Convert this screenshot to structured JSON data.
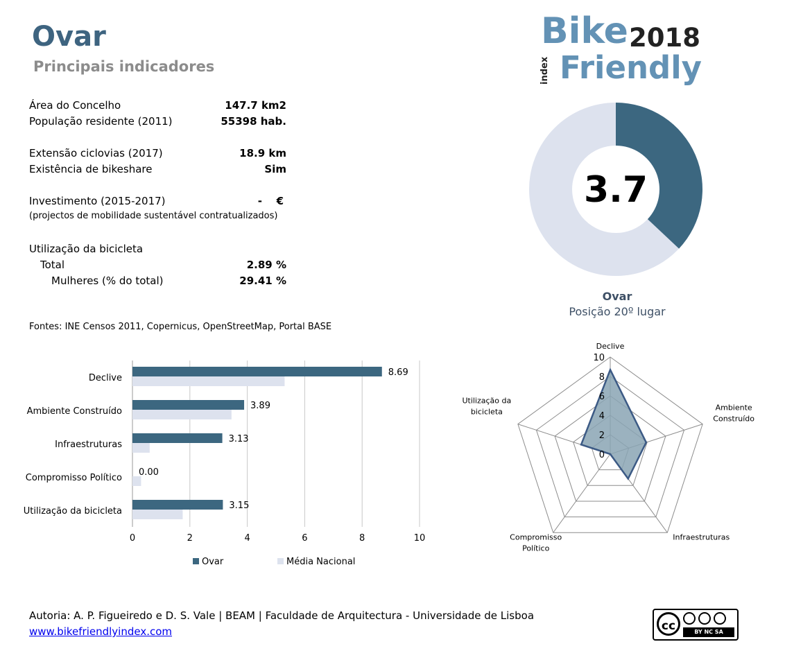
{
  "header": {
    "title": "Ovar",
    "subtitle": "Principais indicadores"
  },
  "logo": {
    "bike": "Bike",
    "year": "2018",
    "friendly": "Friendly",
    "index": "index"
  },
  "indicators": {
    "area_label": "Área do Concelho",
    "area_value": "147.7 km2",
    "pop_label": "População residente (2011)",
    "pop_value": "55398 hab.",
    "cycle_label": "Extensão ciclovias (2017)",
    "cycle_value": "18.9 km",
    "bikeshare_label": "Existência de bikeshare",
    "bikeshare_value": "Sim",
    "invest_label": "Investimento (2015-2017)",
    "invest_dash": "-",
    "invest_unit": "€",
    "invest_note": "(projectos de mobilidade sustentável contratualizados)",
    "usage_label": "Utilização da bicicleta",
    "total_label": "Total",
    "total_value": "2.89 %",
    "women_label": "Mulheres (% do total)",
    "women_value": "29.41 %"
  },
  "sources": "Fontes: INE Censos 2011, Copernicus, OpenStreetMap,  Portal BASE",
  "donut": {
    "score": "3.7",
    "value": 3.7,
    "max": 10,
    "city": "Ovar",
    "position": "Posição 20º lugar",
    "colors": {
      "filled": "#3c6780",
      "empty": "#dde2ee"
    }
  },
  "chart_data": [
    {
      "type": "bar",
      "orientation": "horizontal",
      "categories": [
        "Declive",
        "Ambiente Construído",
        "Infraestruturas",
        "Compromisso Político",
        "Utilização da bicicleta"
      ],
      "series": [
        {
          "name": "Ovar",
          "values": [
            8.69,
            3.89,
            3.13,
            0.0,
            3.15
          ],
          "color": "#3c6780"
        },
        {
          "name": "Média Nacional",
          "values": [
            5.3,
            3.45,
            0.6,
            0.3,
            1.75
          ],
          "color": "#dde2ee"
        }
      ],
      "data_labels": [
        "8.69",
        "3.89",
        "3.13",
        "0.00",
        "3.15"
      ],
      "xlim": [
        0,
        10
      ],
      "x_ticks": [
        "0",
        "2",
        "4",
        "6",
        "8",
        "10"
      ],
      "grid": true,
      "legend": "bottom"
    },
    {
      "type": "radar",
      "axes": [
        "Declive",
        "Ambiente Construído",
        "Infraestruturas",
        "Compromisso Político",
        "Utilização da bicicleta"
      ],
      "axis_labels": [
        [
          "Declive"
        ],
        [
          "Ambiente",
          "Construído"
        ],
        [
          "Infraestruturas"
        ],
        [
          "Compromisso",
          "Político"
        ],
        [
          "Utilização da",
          "bicicleta"
        ]
      ],
      "values": [
        8.69,
        3.89,
        3.13,
        0.0,
        3.15
      ],
      "rlim": [
        0,
        10
      ],
      "r_ticks": [
        "0",
        "2",
        "4",
        "6",
        "8",
        "10"
      ],
      "color": "#3c5a85",
      "fill": "#8aa4b4"
    }
  ],
  "footer": {
    "authors": "Autoria: A. P. Figueiredo e D. S. Vale | BEAM | Faculdade de Arquitectura - Universidade de Lisboa",
    "link": "www.bikefriendlyindex.com",
    "cc": "cc",
    "cc_terms": "BY  NC  SA"
  }
}
